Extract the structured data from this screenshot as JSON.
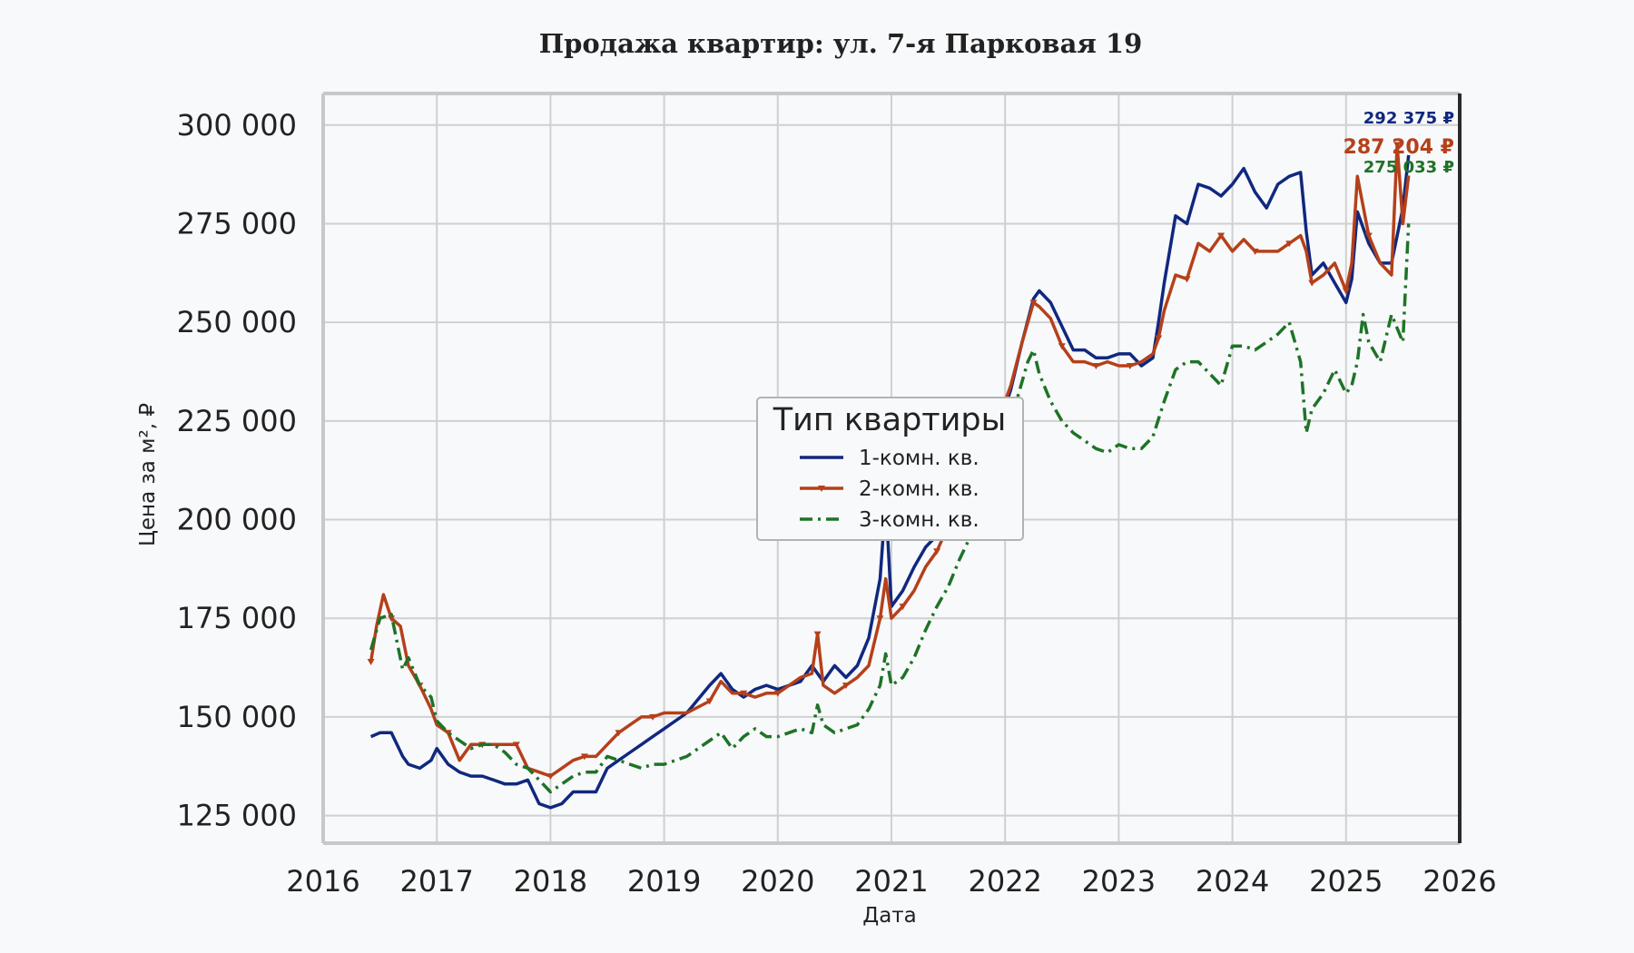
{
  "chart_data": {
    "type": "line",
    "title": "Продажа квартир: ул. 7-я Парковая 19",
    "xlabel": "Дата",
    "ylabel": "Цена за м², ₽",
    "xlim": [
      2016,
      2026
    ],
    "ylim": [
      118000,
      308000
    ],
    "x_ticks": [
      2016,
      2017,
      2018,
      2019,
      2020,
      2021,
      2022,
      2023,
      2024,
      2025,
      2026
    ],
    "x_tick_labels": [
      "2016",
      "2017",
      "2018",
      "2019",
      "2020",
      "2021",
      "2022",
      "2023",
      "2024",
      "2025",
      "2026"
    ],
    "y_ticks": [
      125000,
      150000,
      175000,
      200000,
      225000,
      250000,
      275000,
      300000
    ],
    "y_tick_labels": [
      "125 000",
      "150 000",
      "175 000",
      "200 000",
      "225 000",
      "250 000",
      "275 000",
      "300 000"
    ],
    "grid": true,
    "legend": {
      "title": "Тип квартиры",
      "position": "center"
    },
    "series": [
      {
        "name": "1-комн. кв.",
        "color": "#10287e",
        "style": "solid",
        "marker": "none",
        "x": [
          2016.42,
          2016.5,
          2016.6,
          2016.7,
          2016.75,
          2016.85,
          2016.95,
          2017.0,
          2017.1,
          2017.2,
          2017.3,
          2017.4,
          2017.5,
          2017.6,
          2017.7,
          2017.8,
          2017.9,
          2018.0,
          2018.1,
          2018.2,
          2018.3,
          2018.4,
          2018.5,
          2018.6,
          2018.7,
          2018.8,
          2018.9,
          2019.0,
          2019.2,
          2019.4,
          2019.5,
          2019.6,
          2019.7,
          2019.8,
          2019.9,
          2020.0,
          2020.2,
          2020.3,
          2020.4,
          2020.5,
          2020.6,
          2020.7,
          2020.8,
          2020.9,
          2020.95,
          2021.0,
          2021.1,
          2021.2,
          2021.3,
          2021.4,
          2021.6,
          2021.8,
          2021.95,
          2022.05,
          2022.15,
          2022.25,
          2022.3,
          2022.4,
          2022.5,
          2022.6,
          2022.7,
          2022.8,
          2022.9,
          2023.0,
          2023.1,
          2023.2,
          2023.3,
          2023.35,
          2023.4,
          2023.5,
          2023.6,
          2023.7,
          2023.8,
          2023.9,
          2024.0,
          2024.1,
          2024.2,
          2024.3,
          2024.4,
          2024.5,
          2024.6,
          2024.65,
          2024.7,
          2024.8,
          2024.9,
          2025.0,
          2025.05,
          2025.1,
          2025.2,
          2025.3,
          2025.4,
          2025.5,
          2025.55
        ],
        "y": [
          145000,
          146000,
          146000,
          140000,
          138000,
          137000,
          139000,
          142000,
          138000,
          136000,
          135000,
          135000,
          134000,
          133000,
          133000,
          134000,
          128000,
          127000,
          128000,
          131000,
          131000,
          131000,
          137000,
          139000,
          141000,
          143000,
          145000,
          147000,
          151000,
          158000,
          161000,
          157000,
          155000,
          157000,
          158000,
          157000,
          159000,
          163000,
          159000,
          163000,
          160000,
          163000,
          170000,
          185000,
          205000,
          178000,
          182000,
          188000,
          193000,
          196000,
          203000,
          214000,
          224000,
          233000,
          245000,
          256000,
          258000,
          255000,
          249000,
          243000,
          243000,
          241000,
          241000,
          242000,
          242000,
          239000,
          241000,
          250000,
          260000,
          277000,
          275000,
          285000,
          284000,
          282000,
          285000,
          289000,
          283000,
          279000,
          285000,
          287000,
          288000,
          273000,
          262000,
          265000,
          260000,
          255000,
          261000,
          278000,
          270000,
          265000,
          265000,
          279000,
          292375
        ]
      },
      {
        "name": "2-комн. кв.",
        "color": "#b5401a",
        "style": "solid",
        "marker": "triangle-down",
        "x": [
          2016.42,
          2016.47,
          2016.53,
          2016.6,
          2016.68,
          2016.75,
          2016.85,
          2016.95,
          2017.0,
          2017.1,
          2017.2,
          2017.3,
          2017.4,
          2017.5,
          2017.6,
          2017.7,
          2017.8,
          2017.9,
          2018.0,
          2018.1,
          2018.2,
          2018.3,
          2018.4,
          2018.5,
          2018.6,
          2018.7,
          2018.8,
          2018.9,
          2019.0,
          2019.2,
          2019.4,
          2019.5,
          2019.6,
          2019.7,
          2019.8,
          2019.9,
          2020.0,
          2020.2,
          2020.3,
          2020.35,
          2020.4,
          2020.5,
          2020.6,
          2020.7,
          2020.8,
          2020.9,
          2020.95,
          2021.0,
          2021.1,
          2021.2,
          2021.3,
          2021.4,
          2021.6,
          2021.8,
          2021.95,
          2022.05,
          2022.15,
          2022.25,
          2022.3,
          2022.4,
          2022.5,
          2022.6,
          2022.7,
          2022.8,
          2022.9,
          2023.0,
          2023.1,
          2023.2,
          2023.3,
          2023.35,
          2023.4,
          2023.5,
          2023.6,
          2023.7,
          2023.8,
          2023.9,
          2024.0,
          2024.1,
          2024.2,
          2024.3,
          2024.4,
          2024.5,
          2024.6,
          2024.65,
          2024.7,
          2024.8,
          2024.9,
          2025.0,
          2025.05,
          2025.1,
          2025.2,
          2025.3,
          2025.4,
          2025.45,
          2025.5,
          2025.55
        ],
        "y": [
          164000,
          173000,
          181000,
          175000,
          173000,
          163000,
          158000,
          152000,
          148000,
          146000,
          139000,
          143000,
          143000,
          143000,
          143000,
          143000,
          137000,
          136000,
          135000,
          137000,
          139000,
          140000,
          140000,
          143000,
          146000,
          148000,
          150000,
          150000,
          151000,
          151000,
          154000,
          159000,
          156000,
          156000,
          155000,
          156000,
          156000,
          160000,
          161000,
          171000,
          158000,
          156000,
          158000,
          160000,
          163000,
          175000,
          185000,
          175000,
          178000,
          182000,
          188000,
          192000,
          205000,
          217000,
          226000,
          234000,
          245000,
          255000,
          254000,
          251000,
          244000,
          240000,
          240000,
          239000,
          240000,
          239000,
          239000,
          240000,
          242000,
          246000,
          253000,
          262000,
          261000,
          270000,
          268000,
          272000,
          268000,
          271000,
          268000,
          268000,
          268000,
          270000,
          272000,
          268000,
          260000,
          262000,
          265000,
          258000,
          265000,
          287000,
          272000,
          265000,
          262000,
          295000,
          275000,
          287204
        ]
      },
      {
        "name": "3-комн. кв.",
        "color": "#1e7326",
        "style": "dashdot",
        "marker": "none",
        "x": [
          2016.42,
          2016.5,
          2016.6,
          2016.7,
          2016.75,
          2016.85,
          2016.95,
          2017.0,
          2017.1,
          2017.2,
          2017.3,
          2017.4,
          2017.5,
          2017.6,
          2017.7,
          2017.8,
          2017.9,
          2018.0,
          2018.1,
          2018.2,
          2018.3,
          2018.4,
          2018.5,
          2018.6,
          2018.7,
          2018.8,
          2018.9,
          2019.0,
          2019.2,
          2019.4,
          2019.5,
          2019.6,
          2019.7,
          2019.8,
          2019.9,
          2020.0,
          2020.2,
          2020.3,
          2020.35,
          2020.4,
          2020.5,
          2020.6,
          2020.7,
          2020.8,
          2020.9,
          2020.95,
          2021.0,
          2021.1,
          2021.2,
          2021.3,
          2021.4,
          2021.5,
          2021.6,
          2021.7,
          2021.8,
          2021.9,
          2022.0,
          2022.1,
          2022.2,
          2022.25,
          2022.3,
          2022.4,
          2022.5,
          2022.6,
          2022.7,
          2022.8,
          2022.9,
          2023.0,
          2023.1,
          2023.2,
          2023.3,
          2023.4,
          2023.5,
          2023.6,
          2023.7,
          2023.8,
          2023.9,
          2024.0,
          2024.1,
          2024.2,
          2024.3,
          2024.4,
          2024.5,
          2024.6,
          2024.65,
          2024.7,
          2024.8,
          2024.9,
          2025.0,
          2025.05,
          2025.1,
          2025.15,
          2025.2,
          2025.3,
          2025.4,
          2025.5,
          2025.55
        ],
        "y": [
          167000,
          175000,
          176000,
          162000,
          165000,
          158000,
          155000,
          149000,
          146000,
          144000,
          142000,
          143000,
          143000,
          141000,
          138000,
          137000,
          134000,
          131000,
          133000,
          135000,
          136000,
          136000,
          140000,
          139000,
          138000,
          137000,
          138000,
          138000,
          140000,
          144000,
          146000,
          142000,
          145000,
          147000,
          145000,
          145000,
          147000,
          146000,
          153000,
          148000,
          146000,
          147000,
          148000,
          152000,
          158000,
          166000,
          158000,
          160000,
          165000,
          172000,
          178000,
          183000,
          190000,
          196000,
          200000,
          208000,
          221000,
          230000,
          240000,
          243000,
          237000,
          230000,
          225000,
          222000,
          220000,
          218000,
          217000,
          219000,
          218000,
          218000,
          221000,
          230000,
          238000,
          240000,
          240000,
          237000,
          234000,
          244000,
          244000,
          243000,
          245000,
          247000,
          250000,
          240000,
          222000,
          228000,
          232000,
          238000,
          232000,
          234000,
          240000,
          252000,
          245000,
          240000,
          252000,
          245000,
          275033
        ]
      }
    ],
    "end_labels": [
      {
        "series": 0,
        "text": "292 375 ₽",
        "color": "#10287e"
      },
      {
        "series": 1,
        "text": "287 204 ₽",
        "color": "#b5401a"
      },
      {
        "series": 2,
        "text": "275 033 ₽",
        "color": "#1e7326"
      }
    ]
  }
}
